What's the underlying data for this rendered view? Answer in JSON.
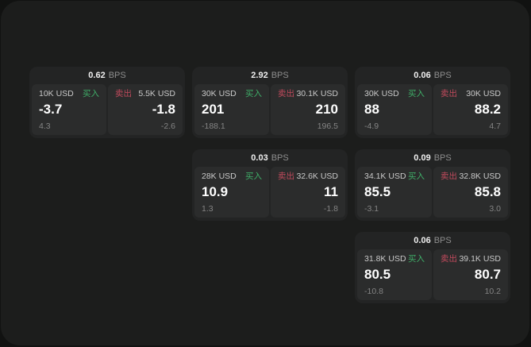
{
  "labels": {
    "bps": "BPS",
    "buy": "买入",
    "sell": "卖出"
  },
  "colors": {
    "outer_bg": "#111211",
    "window_bg": "#1c1d1c",
    "card_bg": "#232424",
    "panel_bg": "#2b2c2c",
    "buy_accent": "#3fae68",
    "sell_accent": "#c04a5c"
  },
  "cards": [
    {
      "bps": "0.62",
      "buy": {
        "amount": "10K USD",
        "price": "-3.7",
        "delta": "4.3"
      },
      "sell": {
        "amount": "5.5K USD",
        "price": "-1.8",
        "delta": "-2.6"
      }
    },
    {
      "bps": "2.92",
      "buy": {
        "amount": "30K USD",
        "price": "201",
        "delta": "-188.1"
      },
      "sell": {
        "amount": "30.1K USD",
        "price": "210",
        "delta": "196.5"
      }
    },
    {
      "bps": "0.06",
      "buy": {
        "amount": "30K USD",
        "price": "88",
        "delta": "-4.9"
      },
      "sell": {
        "amount": "30K USD",
        "price": "88.2",
        "delta": "4.7"
      }
    },
    {
      "bps": "0.03",
      "buy": {
        "amount": "28K USD",
        "price": "10.9",
        "delta": "1.3"
      },
      "sell": {
        "amount": "32.6K USD",
        "price": "11",
        "delta": "-1.8"
      }
    },
    {
      "bps": "0.09",
      "buy": {
        "amount": "34.1K USD",
        "price": "85.5",
        "delta": "-3.1"
      },
      "sell": {
        "amount": "32.8K USD",
        "price": "85.8",
        "delta": "3.0"
      }
    },
    {
      "bps": "0.06",
      "buy": {
        "amount": "31.8K USD",
        "price": "80.5",
        "delta": "-10.8"
      },
      "sell": {
        "amount": "39.1K USD",
        "price": "80.7",
        "delta": "10.2"
      }
    }
  ]
}
